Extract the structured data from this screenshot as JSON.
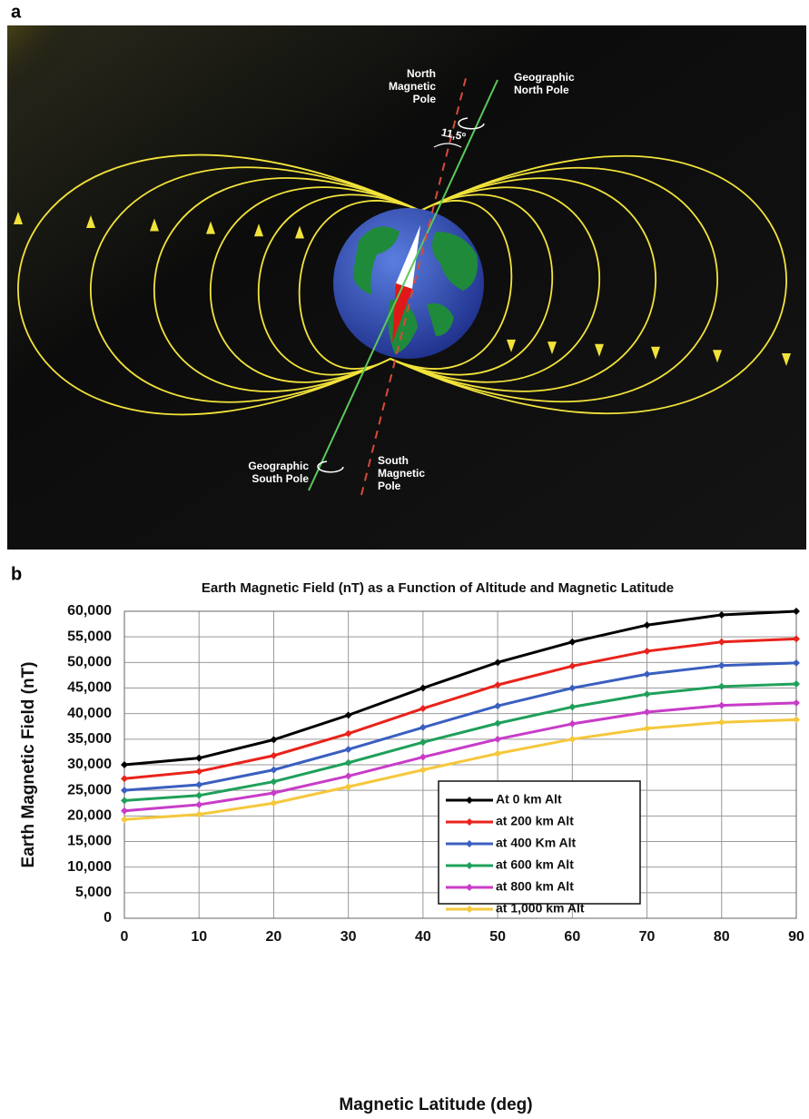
{
  "diagram": {
    "letter": "a",
    "north_magnetic_pole": [
      "North",
      "Magnetic",
      "Pole"
    ],
    "geographic_north_pole": [
      "Geographic",
      "North Pole"
    ],
    "angle": "11,5º",
    "geographic_south_pole": [
      "Geographic",
      "South Pole"
    ],
    "south_magnetic_pole": [
      "South",
      "Magnetic",
      "Pole"
    ]
  },
  "panel_b_letter": "b",
  "chart_data": {
    "type": "line",
    "title": "Earth Magnetic Field (nT) as a Function of Altitude and Magnetic Latitude",
    "x_label": "Magnetic Latitude (deg)",
    "y_label": "Earth Magnetic Field (nT)",
    "x": [
      0,
      10,
      20,
      30,
      40,
      50,
      60,
      70,
      80,
      90
    ],
    "xlim": [
      0,
      90
    ],
    "xticks": [
      0,
      10,
      20,
      30,
      40,
      50,
      60,
      70,
      80,
      90
    ],
    "ylim": [
      0,
      60000
    ],
    "yticks": [
      {
        "value": 0,
        "label": "0"
      },
      {
        "value": 5000,
        "label": "5,000"
      },
      {
        "value": 10000,
        "label": "10,000"
      },
      {
        "value": 15000,
        "label": "15,000"
      },
      {
        "value": 20000,
        "label": "20,000"
      },
      {
        "value": 25000,
        "label": "25,000"
      },
      {
        "value": 30000,
        "label": "30,000"
      },
      {
        "value": 35000,
        "label": "35,000"
      },
      {
        "value": 40000,
        "label": "40,000"
      },
      {
        "value": 45000,
        "label": "45,000"
      },
      {
        "value": 50000,
        "label": "50,000"
      },
      {
        "value": 55000,
        "label": "55,000"
      },
      {
        "value": 60000,
        "label": "60,000"
      }
    ],
    "grid": true,
    "legend": "center-right",
    "series": [
      {
        "name": "At 0 km Alt",
        "color": "#000000",
        "values": [
          30000,
          31300,
          34900,
          39700,
          45000,
          50000,
          54000,
          57300,
          59300,
          60000
        ]
      },
      {
        "name": "at 200 km Alt",
        "color": "#e8231b",
        "values": [
          27300,
          28700,
          31800,
          36100,
          41000,
          45600,
          49300,
          52200,
          54000,
          54600
        ]
      },
      {
        "name": "at 400 Km Alt",
        "color": "#3a5fc0",
        "values": [
          25000,
          26100,
          29000,
          33000,
          37300,
          41500,
          45000,
          47700,
          49400,
          49900
        ]
      },
      {
        "name": "at 600 km Alt",
        "color": "#1fa05a",
        "values": [
          23000,
          24000,
          26700,
          30400,
          34400,
          38100,
          41300,
          43800,
          45300,
          45800
        ]
      },
      {
        "name": "at 800 km Alt",
        "color": "#c83cc8",
        "values": [
          21000,
          22200,
          24500,
          27800,
          31500,
          35000,
          38000,
          40300,
          41600,
          42100
        ]
      },
      {
        "name": "at 1,000 km Alt",
        "color": "#f5c83c",
        "values": [
          19300,
          20300,
          22500,
          25700,
          29000,
          32200,
          35000,
          37100,
          38300,
          38800
        ]
      }
    ]
  }
}
